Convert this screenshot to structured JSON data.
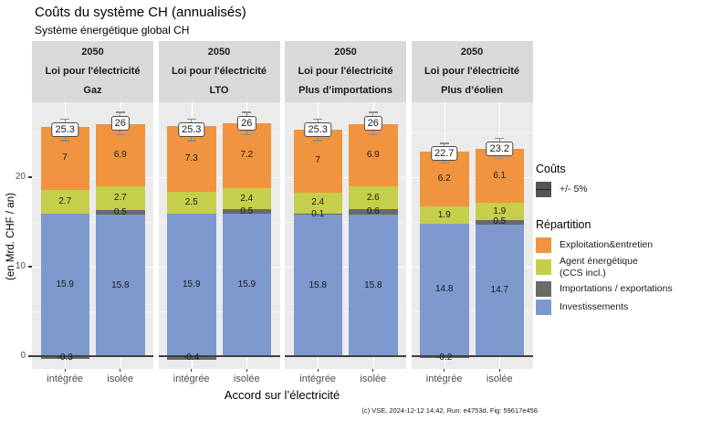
{
  "chart_data": {
    "type": "bar",
    "stacked": true,
    "title": "Coûts du système CH (annualisés)",
    "subtitle": "Système énergétique global CH",
    "ylabel": "(en Mrd. CHF / an)",
    "xlabel": "Accord sur l’électricité",
    "caption": "(c) VSE, 2024-12-12 14:42, Run: e4753d, Fig: 59617e456",
    "y_ticks": [
      0,
      10,
      20
    ],
    "ylim": [
      -1.4,
      28.4
    ],
    "x_categories": [
      "intégrée",
      "isolée"
    ],
    "grid": true,
    "legend_position": "right",
    "series_colors": {
      "exploitation": "#F0943F",
      "agent": "#C5CF4B",
      "importations": "#6A6A6A",
      "investissements": "#7D99CE"
    },
    "facets": [
      {
        "header": [
          "2050",
          "Loi pour l'électricité",
          "Gaz"
        ],
        "bars": [
          {
            "x": "intégrée",
            "total": 25.3,
            "total_label": "25.3",
            "segments": [
              {
                "key": "investissements",
                "value": 15.9,
                "label": "15.9"
              },
              {
                "key": "agent",
                "value": 2.7,
                "label": "2.7"
              },
              {
                "key": "exploitation",
                "value": 7,
                "label": "7"
              }
            ],
            "negative": {
              "key": "importations",
              "value": -0.3,
              "label": "-0.3"
            }
          },
          {
            "x": "isolée",
            "total": 26,
            "total_label": "26",
            "segments": [
              {
                "key": "investissements",
                "value": 15.8,
                "label": "15.8"
              },
              {
                "key": "importations",
                "value": 0.5,
                "label": "0.5"
              },
              {
                "key": "agent",
                "value": 2.7,
                "label": "2.7"
              },
              {
                "key": "exploitation",
                "value": 6.9,
                "label": "6.9"
              }
            ],
            "negative": null
          }
        ]
      },
      {
        "header": [
          "2050",
          "Loi pour l'électricité",
          "LTO"
        ],
        "bars": [
          {
            "x": "intégrée",
            "total": 25.3,
            "total_label": "25.3",
            "segments": [
              {
                "key": "investissements",
                "value": 15.9,
                "label": "15.9"
              },
              {
                "key": "agent",
                "value": 2.5,
                "label": "2.5"
              },
              {
                "key": "exploitation",
                "value": 7.3,
                "label": "7.3"
              }
            ],
            "negative": {
              "key": "importations",
              "value": -0.4,
              "label": "-0.4"
            }
          },
          {
            "x": "isolée",
            "total": 26,
            "total_label": "26",
            "segments": [
              {
                "key": "investissements",
                "value": 15.9,
                "label": "15.9"
              },
              {
                "key": "importations",
                "value": 0.5,
                "label": "0.5"
              },
              {
                "key": "agent",
                "value": 2.4,
                "label": "2.4"
              },
              {
                "key": "exploitation",
                "value": 7.2,
                "label": "7.2"
              }
            ],
            "negative": null
          }
        ]
      },
      {
        "header": [
          "2050",
          "Loi pour l'électricité",
          "Plus d’importations"
        ],
        "bars": [
          {
            "x": "intégrée",
            "total": 25.3,
            "total_label": "25.3",
            "segments": [
              {
                "key": "investissements",
                "value": 15.8,
                "label": "15.8"
              },
              {
                "key": "importations",
                "value": 0.1,
                "label": "0.1"
              },
              {
                "key": "agent",
                "value": 2.4,
                "label": "2.4"
              },
              {
                "key": "exploitation",
                "value": 7,
                "label": "7"
              }
            ],
            "negative": null
          },
          {
            "x": "isolée",
            "total": 26,
            "total_label": "26",
            "segments": [
              {
                "key": "investissements",
                "value": 15.8,
                "label": "15.8"
              },
              {
                "key": "importations",
                "value": 0.6,
                "label": "0.6"
              },
              {
                "key": "agent",
                "value": 2.6,
                "label": "2.6"
              },
              {
                "key": "exploitation",
                "value": 6.9,
                "label": "6.9"
              }
            ],
            "negative": null
          }
        ]
      },
      {
        "header": [
          "2050",
          "Loi pour l'électricité",
          "Plus d’éolien"
        ],
        "bars": [
          {
            "x": "intégrée",
            "total": 22.7,
            "total_label": "22.7",
            "segments": [
              {
                "key": "investissements",
                "value": 14.8,
                "label": "14.8"
              },
              {
                "key": "agent",
                "value": 1.9,
                "label": "1.9"
              },
              {
                "key": "exploitation",
                "value": 6.2,
                "label": "6.2"
              }
            ],
            "negative": {
              "key": "importations",
              "value": -0.2,
              "label": "-0.2"
            }
          },
          {
            "x": "isolée",
            "total": 23.2,
            "total_label": "23.2",
            "segments": [
              {
                "key": "investissements",
                "value": 14.7,
                "label": "14.7"
              },
              {
                "key": "importations",
                "value": 0.5,
                "label": "0.5"
              },
              {
                "key": "agent",
                "value": 1.9,
                "label": "1.9"
              },
              {
                "key": "exploitation",
                "value": 6.1,
                "label": "6.1"
              }
            ],
            "negative": null
          }
        ]
      }
    ],
    "legend": {
      "costs_title": "Coûts",
      "costs_items": [
        {
          "label": "+/- 5%",
          "color": "#545454"
        }
      ],
      "repartition_title": "Répartition",
      "items": [
        {
          "key": "exploitation",
          "label": "Exploitation&entretien",
          "color": "#F0943F"
        },
        {
          "key": "agent",
          "label": "Agent énergétique\n(CCS incl.)",
          "color": "#C5CF4B"
        },
        {
          "key": "importations",
          "label": "Importations / exportations",
          "color": "#6A6A6A"
        },
        {
          "key": "investissements",
          "label": "Investissements",
          "color": "#7D99CE"
        }
      ]
    }
  }
}
